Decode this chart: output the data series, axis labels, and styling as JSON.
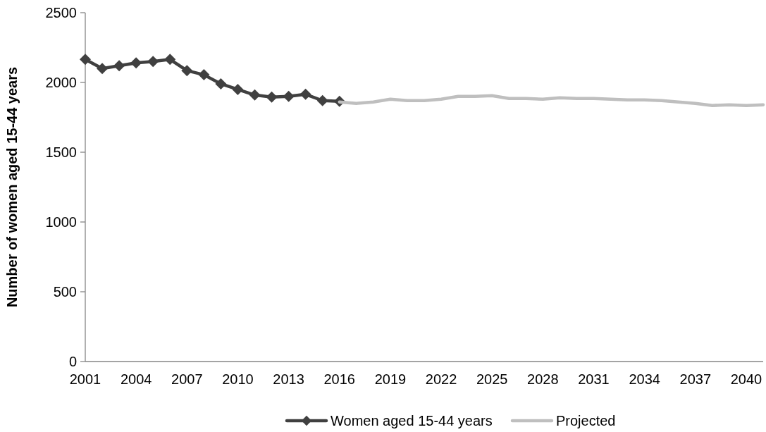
{
  "chart_data": {
    "type": "line",
    "ylabel": "Number of women aged 15-44 years",
    "categories": [
      "2001",
      null,
      null,
      "2004",
      null,
      null,
      "2007",
      null,
      null,
      "2010",
      null,
      null,
      "2013",
      null,
      null,
      "2016",
      null,
      null,
      "2019",
      null,
      null,
      "2022",
      null,
      null,
      "2025",
      null,
      null,
      "2028",
      null,
      null,
      "2031",
      null,
      null,
      "2034",
      null,
      null,
      "2037",
      null,
      null,
      "2040",
      null
    ],
    "ylim": [
      0,
      2500
    ],
    "yticks": [
      0,
      500,
      1000,
      1500,
      2000,
      2500
    ],
    "grid": false,
    "legend": "bottom",
    "line_style": "solid",
    "marker": "diamond",
    "series": [
      {
        "name": "Women aged 15-44 years",
        "color": "#404040",
        "values": [
          2165,
          2100,
          2120,
          2140,
          2150,
          2165,
          2085,
          2055,
          1990,
          1950,
          1910,
          1895,
          1900,
          1915,
          1870,
          1865,
          null,
          null,
          null,
          null,
          null,
          null,
          null,
          null,
          null,
          null,
          null,
          null,
          null,
          null,
          null,
          null,
          null,
          null,
          null,
          null,
          null,
          null,
          null,
          null,
          null
        ]
      },
      {
        "name": "Projected",
        "color": "#bfbfbf",
        "marker": "none",
        "values": [
          null,
          null,
          null,
          null,
          null,
          null,
          null,
          null,
          null,
          null,
          null,
          null,
          null,
          null,
          null,
          1860,
          1850,
          1860,
          1880,
          1870,
          1870,
          1880,
          1900,
          1900,
          1905,
          1885,
          1885,
          1880,
          1890,
          1885,
          1885,
          1880,
          1875,
          1875,
          1870,
          1860,
          1850,
          1835,
          1840,
          1835,
          1840
        ]
      }
    ]
  }
}
